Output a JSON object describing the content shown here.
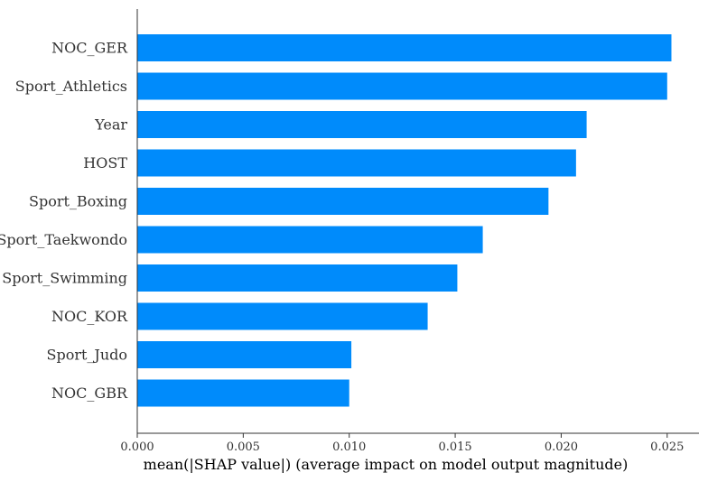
{
  "chart_data": {
    "type": "bar",
    "orientation": "horizontal",
    "title": "",
    "xlabel": "mean(|SHAP value|) (average impact on model output magnitude)",
    "ylabel": "",
    "xlim": [
      0,
      0.0265
    ],
    "xticks": [
      {
        "value": 0.0,
        "label": "0.000"
      },
      {
        "value": 0.005,
        "label": "0.005"
      },
      {
        "value": 0.01,
        "label": "0.010"
      },
      {
        "value": 0.015,
        "label": "0.015"
      },
      {
        "value": 0.02,
        "label": "0.020"
      },
      {
        "value": 0.025,
        "label": "0.025"
      }
    ],
    "grid": false,
    "legend": "none",
    "bar_color": "#008bfb",
    "categories": [
      "NOC_GER",
      "Sport_Athletics",
      "Year",
      "HOST",
      "Sport_Boxing",
      "Sport_Taekwondo",
      "Sport_Swimming",
      "NOC_KOR",
      "Sport_Judo",
      "NOC_GBR"
    ],
    "values": [
      0.0252,
      0.025,
      0.0212,
      0.0207,
      0.0194,
      0.0163,
      0.0151,
      0.0137,
      0.0101,
      0.01
    ]
  }
}
